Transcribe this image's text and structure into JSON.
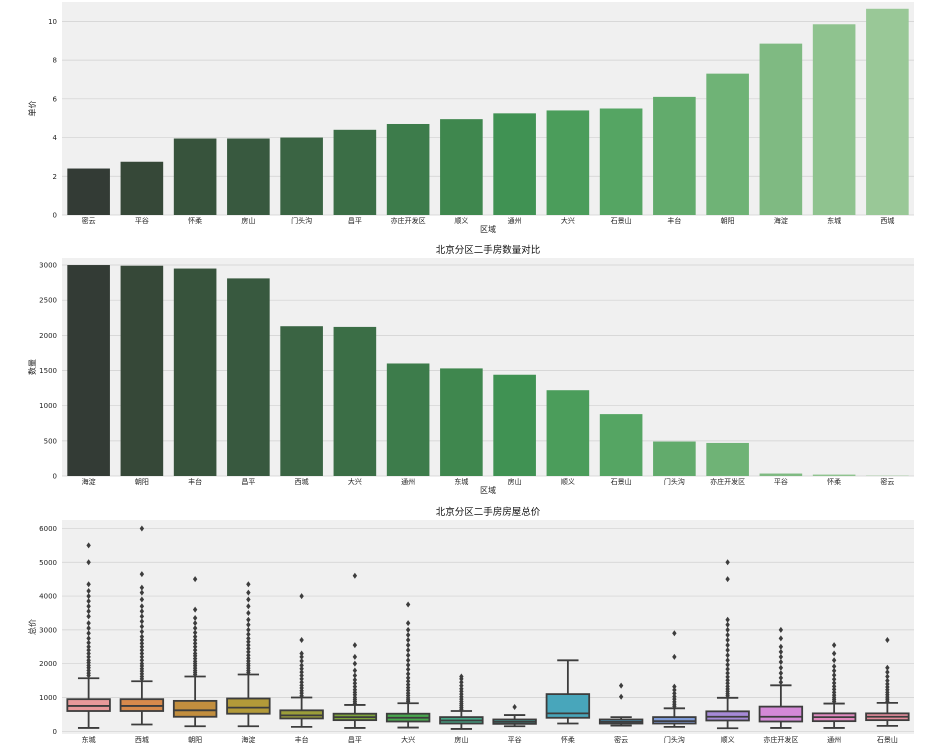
{
  "chart_data": [
    {
      "type": "bar",
      "title": "",
      "xlabel": "区域",
      "ylabel": "单价",
      "ylim": [
        0,
        11
      ],
      "yticks": [
        0,
        2,
        4,
        6,
        8,
        10
      ],
      "grid": true,
      "palette": [
        "#333b35",
        "#364838",
        "#37533c",
        "#38593f",
        "#3a6443",
        "#3b6e46",
        "#3d7c4b",
        "#3f874e",
        "#409253",
        "#4b9d5b",
        "#55a563",
        "#62ab6c",
        "#6fb376",
        "#7fba82",
        "#8fc38f",
        "#99c897",
        "#a6d1a0"
      ],
      "categories": [
        "密云",
        "平谷",
        "怀柔",
        "房山",
        "门头沟",
        "昌平",
        "亦庄开发区",
        "顺义",
        "通州",
        "大兴",
        "石景山",
        "丰台",
        "朝阳",
        "海淀",
        "东城",
        "西城"
      ],
      "values": [
        2.4,
        2.75,
        3.95,
        3.95,
        4.0,
        4.4,
        4.7,
        4.95,
        5.25,
        5.4,
        5.5,
        6.1,
        7.3,
        8.85,
        9.85,
        10.65
      ]
    },
    {
      "type": "bar",
      "title": "北京分区二手房数量对比",
      "xlabel": "区域",
      "ylabel": "数量",
      "ylim": [
        0,
        3100
      ],
      "yticks": [
        0,
        500,
        1000,
        1500,
        2000,
        2500,
        3000
      ],
      "grid": true,
      "palette": [
        "#333b35",
        "#364838",
        "#37533c",
        "#38593f",
        "#3a6443",
        "#3b6e46",
        "#3d7c4b",
        "#3f874e",
        "#409253",
        "#4b9d5b",
        "#55a563",
        "#62ab6c",
        "#6fb376",
        "#7fba82",
        "#8fc38f",
        "#99c897"
      ],
      "categories": [
        "海淀",
        "朝阳",
        "丰台",
        "昌平",
        "西城",
        "大兴",
        "通州",
        "东城",
        "房山",
        "顺义",
        "石景山",
        "门头沟",
        "亦庄开发区",
        "平谷",
        "怀柔",
        "密云"
      ],
      "values": [
        3000,
        2990,
        2950,
        2810,
        2130,
        2120,
        1600,
        1530,
        1440,
        1220,
        880,
        490,
        470,
        35,
        20,
        5
      ]
    },
    {
      "type": "box",
      "title": "北京分区二手房房屋总价",
      "xlabel": "",
      "ylabel": "总价",
      "ylim": [
        -80,
        6250
      ],
      "yticks": [
        0,
        1000,
        2000,
        3000,
        4000,
        5000,
        6000
      ],
      "grid": true,
      "categories": [
        "东城",
        "西城",
        "朝阳",
        "海淀",
        "丰台",
        "昌平",
        "大兴",
        "房山",
        "平谷",
        "怀柔",
        "密云",
        "门头沟",
        "顺义",
        "亦庄开发区",
        "通州",
        "石景山"
      ],
      "colors": [
        "#e8999a",
        "#d88a4c",
        "#c28e3e",
        "#b29a39",
        "#9b9e3a",
        "#7ea43a",
        "#49a84e",
        "#45a787",
        "#46a59d",
        "#48a6bb",
        "#4b9fc8",
        "#7e9ad7",
        "#a68ad7",
        "#d489d7",
        "#e28ac0",
        "#e68c9c"
      ],
      "boxes": [
        {
          "whislo": 100,
          "q1": 600,
          "med": 750,
          "q3": 950,
          "whishi": 1570,
          "fliers": [
            1650,
            1720,
            1800,
            1880,
            1950,
            2030,
            2100,
            2200,
            2300,
            2400,
            2500,
            2620,
            2750,
            2900,
            3050,
            3200,
            3400,
            3550,
            3700,
            3850,
            4000,
            4150,
            4350,
            5000,
            5500
          ]
        },
        {
          "whislo": 200,
          "q1": 600,
          "med": 750,
          "q3": 950,
          "whishi": 1480,
          "fliers": [
            1550,
            1620,
            1700,
            1780,
            1850,
            1930,
            2000,
            2100,
            2200,
            2300,
            2400,
            2500,
            2600,
            2700,
            2800,
            2950,
            3100,
            3250,
            3400,
            3550,
            3700,
            3900,
            4100,
            4250,
            4650,
            6000
          ]
        },
        {
          "whislo": 150,
          "q1": 430,
          "med": 620,
          "q3": 900,
          "whishi": 1620,
          "fliers": [
            1680,
            1740,
            1800,
            1870,
            1940,
            2000,
            2070,
            2150,
            2230,
            2300,
            2400,
            2500,
            2600,
            2700,
            2800,
            2920,
            3050,
            3200,
            3350,
            3600,
            4500
          ]
        },
        {
          "whislo": 150,
          "q1": 520,
          "med": 700,
          "q3": 970,
          "whishi": 1680,
          "fliers": [
            1740,
            1800,
            1870,
            1940,
            2000,
            2080,
            2160,
            2250,
            2350,
            2450,
            2550,
            2650,
            2750,
            2870,
            3000,
            3150,
            3300,
            3500,
            3700,
            3900,
            4100,
            4350
          ]
        },
        {
          "whislo": 130,
          "q1": 380,
          "med": 470,
          "q3": 620,
          "whishi": 1000,
          "fliers": [
            1050,
            1130,
            1200,
            1280,
            1360,
            1450,
            1550,
            1650,
            1750,
            1850,
            1950,
            2080,
            2200,
            2300,
            2700,
            4000
          ]
        },
        {
          "whislo": 100,
          "q1": 330,
          "med": 420,
          "q3": 520,
          "whishi": 780,
          "fliers": [
            830,
            880,
            940,
            1000,
            1080,
            1150,
            1230,
            1320,
            1420,
            1520,
            1650,
            1800,
            2000,
            2200,
            2550,
            4600
          ]
        },
        {
          "whislo": 110,
          "q1": 290,
          "med": 400,
          "q3": 520,
          "whishi": 830,
          "fliers": [
            880,
            930,
            990,
            1060,
            1130,
            1210,
            1290,
            1380,
            1480,
            1580,
            1700,
            1830,
            1960,
            2100,
            2250,
            2400,
            2550,
            2700,
            2850,
            3000,
            3200,
            3750
          ]
        },
        {
          "whislo": 70,
          "q1": 230,
          "med": 320,
          "q3": 420,
          "whishi": 600,
          "fliers": [
            650,
            700,
            760,
            820,
            880,
            950,
            1020,
            1100,
            1180,
            1260,
            1350,
            1450,
            1550,
            1620
          ]
        },
        {
          "whislo": 150,
          "q1": 220,
          "med": 280,
          "q3": 350,
          "whishi": 480,
          "fliers": [
            720
          ]
        },
        {
          "whislo": 230,
          "q1": 400,
          "med": 530,
          "q3": 1100,
          "whishi": 2100,
          "fliers": []
        },
        {
          "whislo": 170,
          "q1": 230,
          "med": 280,
          "q3": 350,
          "whishi": 420,
          "fliers": [
            1020,
            1350
          ]
        },
        {
          "whislo": 130,
          "q1": 230,
          "med": 300,
          "q3": 420,
          "whishi": 680,
          "fliers": [
            740,
            800,
            870,
            950,
            1030,
            1120,
            1220,
            1320,
            2200,
            2900
          ]
        },
        {
          "whislo": 90,
          "q1": 320,
          "med": 430,
          "q3": 590,
          "whishi": 990,
          "fliers": [
            1050,
            1110,
            1180,
            1250,
            1330,
            1420,
            1510,
            1610,
            1720,
            1840,
            1970,
            2100,
            2250,
            2400,
            2550,
            2700,
            2850,
            3000,
            3150,
            3300,
            4500,
            5000
          ]
        },
        {
          "whislo": 100,
          "q1": 290,
          "med": 430,
          "q3": 730,
          "whishi": 1360,
          "fliers": [
            1450,
            1580,
            1720,
            1880,
            2050,
            2200,
            2350,
            2500,
            2750,
            3000
          ]
        },
        {
          "whislo": 100,
          "q1": 300,
          "med": 420,
          "q3": 530,
          "whishi": 820,
          "fliers": [
            880,
            940,
            1000,
            1070,
            1150,
            1240,
            1330,
            1430,
            1540,
            1660,
            1790,
            1920,
            2100,
            2300,
            2550
          ]
        },
        {
          "whislo": 160,
          "q1": 330,
          "med": 430,
          "q3": 530,
          "whishi": 840,
          "fliers": [
            890,
            950,
            1010,
            1080,
            1150,
            1230,
            1310,
            1400,
            1500,
            1620,
            1750,
            1880,
            2700
          ]
        }
      ]
    }
  ]
}
